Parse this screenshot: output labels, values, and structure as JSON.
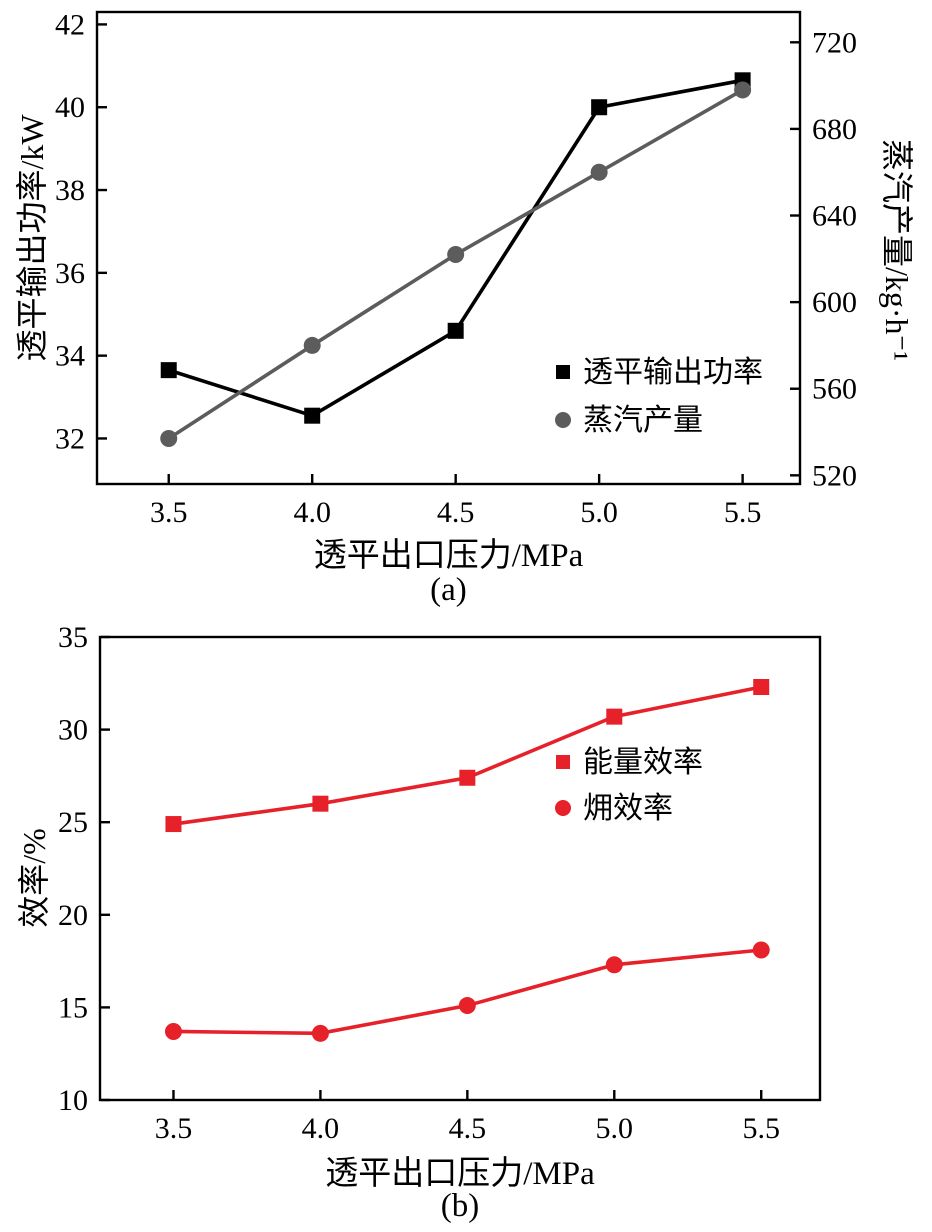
{
  "page": {
    "background": "#ffffff"
  },
  "chart_data": [
    {
      "id": "a",
      "type": "line",
      "caption": "(a)",
      "xlabel": "透平出口压力/MPa",
      "x": [
        3.5,
        4.0,
        4.5,
        5.0,
        5.5
      ],
      "xticks": [
        "3.5",
        "4.0",
        "4.5",
        "5.0",
        "5.5"
      ],
      "xlim": [
        3.25,
        5.7
      ],
      "grid": false,
      "legend_position": "inside-right-lower",
      "yaxes": {
        "left": {
          "label": "透平输出功率/kW",
          "lim": [
            30.9,
            42.3
          ],
          "ticks": [
            32,
            34,
            36,
            38,
            40,
            42
          ]
        },
        "right": {
          "label": "蒸汽产量/kg·h⁻¹",
          "lim": [
            516,
            734
          ],
          "ticks": [
            520,
            560,
            600,
            640,
            680,
            720
          ]
        }
      },
      "series": [
        {
          "name": "透平输出功率",
          "axis": "left",
          "marker": "square",
          "color": "#000000",
          "values": [
            33.65,
            32.55,
            34.6,
            40.0,
            40.65
          ]
        },
        {
          "name": "蒸汽产量",
          "axis": "right",
          "marker": "circle",
          "color": "#5c5c5c",
          "values": [
            537,
            580,
            622,
            660,
            698
          ]
        }
      ]
    },
    {
      "id": "b",
      "type": "line",
      "caption": "(b)",
      "xlabel": "透平出口压力/MPa",
      "x": [
        3.5,
        4.0,
        4.5,
        5.0,
        5.5
      ],
      "xticks": [
        "3.5",
        "4.0",
        "4.5",
        "5.0",
        "5.5"
      ],
      "xlim": [
        3.25,
        5.7
      ],
      "grid": false,
      "legend_position": "inside-right-upper",
      "yaxes": {
        "left": {
          "label": "效率/%",
          "lim": [
            10,
            35
          ],
          "ticks": [
            10,
            15,
            20,
            25,
            30,
            35
          ]
        }
      },
      "series": [
        {
          "name": "能量效率",
          "axis": "left",
          "marker": "square",
          "color": "#e62129",
          "values": [
            24.9,
            26.0,
            27.4,
            30.7,
            32.3
          ]
        },
        {
          "name": "㶲效率",
          "axis": "left",
          "marker": "circle",
          "color": "#e62129",
          "values": [
            13.7,
            13.6,
            15.1,
            17.3,
            18.1
          ]
        }
      ]
    }
  ]
}
